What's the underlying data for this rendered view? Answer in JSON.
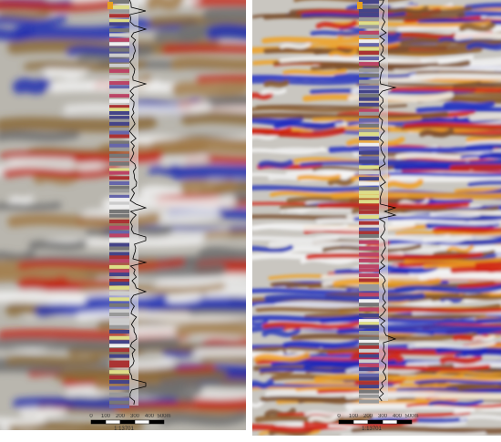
{
  "panels": [
    {
      "scale_labels": [
        "0",
        "100",
        "200",
        "300",
        "400",
        "500m"
      ],
      "scale_ratio": "1:13701"
    },
    {
      "scale_labels": [
        "0",
        "100",
        "200",
        "300",
        "400",
        "500m"
      ],
      "scale_ratio": "1:13701"
    }
  ]
}
